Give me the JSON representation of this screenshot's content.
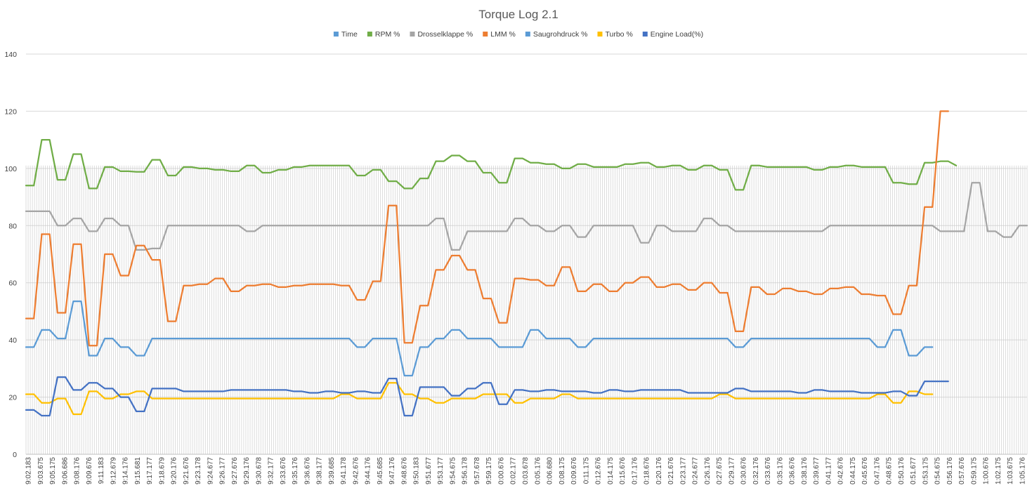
{
  "chart_data": {
    "type": "line",
    "title": "Torque Log 2.1",
    "xlabel": "",
    "ylabel": "",
    "ylim": [
      0,
      140
    ],
    "yticks": [
      0,
      20,
      40,
      60,
      80,
      100,
      120,
      140
    ],
    "grid": true,
    "legend_position": "top",
    "x_tick_labels": [
      "9:02.183",
      "9:03.675",
      "9:05.175",
      "9:06.686",
      "9:08.176",
      "9:09.676",
      "9:11.183",
      "9:12.679",
      "9:14.176",
      "9:15.681",
      "9:17.177",
      "9:18.679",
      "9:20.176",
      "9:21.676",
      "9:23.178",
      "9:24.677",
      "9:26.177",
      "9:27.676",
      "9:29.176",
      "9:30.678",
      "9:32.177",
      "9:33.676",
      "9:35.176",
      "9:36.676",
      "9:38.177",
      "9:39.685",
      "9:41.178",
      "9:42.676",
      "9:44.176",
      "9:45.685",
      "9:47.176",
      "9:48.676",
      "9:50.183",
      "9:51.677",
      "9:53.177",
      "9:54.675",
      "9:56.178",
      "9:57.678",
      "9:59.175",
      "0:00.676",
      "0:02.177",
      "0:03.678",
      "0:05.176",
      "0:06.680",
      "0:08.175",
      "0:09.676",
      "0:11.175",
      "0:12.676",
      "0:14.175",
      "0:15.676",
      "0:17.176",
      "0:18.676",
      "0:20.176",
      "0:21.676",
      "0:23.177",
      "0:24.677",
      "0:26.176",
      "0:27.675",
      "0:29.177",
      "0:30.676",
      "0:32.176",
      "0:33.676",
      "0:35.176",
      "0:36.676",
      "0:38.176",
      "0:39.677",
      "0:41.177",
      "0:42.676",
      "0:44.175",
      "0:45.676",
      "0:47.176",
      "0:48.675",
      "0:50.176",
      "0:51.677",
      "0:53.175",
      "0:54.675",
      "0:56.176",
      "0:57.676",
      "0:59.175",
      "1:00.676",
      "1:02.175",
      "1:03.675",
      "1:05.176"
    ],
    "series": [
      {
        "name": "Time",
        "color": "#5b9bd5",
        "values": [],
        "style": "dense-vertical-lines"
      },
      {
        "name": "RPM %",
        "color": "#70ad47",
        "values": [
          94,
          94,
          110,
          110,
          96,
          96,
          105,
          105,
          93,
          93,
          100.5,
          100.5,
          99,
          99,
          98.8,
          98.8,
          103,
          103,
          97.5,
          97.5,
          100.5,
          100.5,
          100,
          100,
          99.5,
          99.5,
          99,
          99,
          101,
          101,
          98.5,
          98.5,
          99.5,
          99.5,
          100.5,
          100.5,
          101,
          101,
          101,
          101,
          101,
          101,
          97.5,
          97.5,
          99.5,
          99.5,
          95.5,
          95.5,
          93,
          93,
          96.5,
          96.5,
          102.5,
          102.5,
          104.5,
          104.5,
          102.5,
          102.5,
          98.5,
          98.5,
          95,
          95,
          103.5,
          103.5,
          102,
          102,
          101.5,
          101.5,
          100,
          100,
          101.5,
          101.5,
          100.5,
          100.5,
          100.5,
          100.5,
          101.5,
          101.5,
          102,
          102,
          100.5,
          100.5,
          101,
          101,
          99.5,
          99.5,
          101,
          101,
          99.5,
          99.5,
          92.5,
          92.5,
          101,
          101,
          100.5,
          100.5,
          100.5,
          100.5,
          100.5,
          100.5,
          99.5,
          99.5,
          100.5,
          100.5,
          101,
          101,
          100.5,
          100.5,
          100.5,
          100.5,
          95,
          95,
          94.5,
          94.5,
          102,
          102,
          102.5,
          102.5,
          101
        ]
      },
      {
        "name": "Drosselklappe %",
        "color": "#a5a5a5",
        "values": [
          85,
          85,
          85,
          85,
          80,
          80,
          82.5,
          82.5,
          78,
          78,
          82.5,
          82.5,
          80,
          80,
          71.5,
          71.5,
          72,
          72,
          80,
          80,
          80,
          80,
          80,
          80,
          80,
          80,
          80,
          80,
          78,
          78,
          80,
          80,
          80,
          80,
          80,
          80,
          80,
          80,
          80,
          80,
          80,
          80,
          80,
          80,
          80,
          80,
          80,
          80,
          80,
          80,
          80,
          80,
          82.5,
          82.5,
          71.5,
          71.5,
          78,
          78,
          78,
          78,
          78,
          78,
          82.5,
          82.5,
          80,
          80,
          78,
          78,
          80,
          80,
          76,
          76,
          80,
          80,
          80,
          80,
          80,
          80,
          74,
          74,
          80,
          80,
          78,
          78,
          78,
          78,
          82.5,
          82.5,
          80,
          80,
          78,
          78,
          78,
          78,
          78,
          78,
          78,
          78,
          78,
          78,
          78,
          78,
          80,
          80,
          80,
          80,
          80,
          80,
          80,
          80,
          80,
          80,
          80,
          80,
          80,
          80,
          78,
          78,
          78,
          78,
          95,
          95,
          78,
          78,
          76,
          76,
          80,
          80
        ]
      },
      {
        "name": "LMM %",
        "color": "#ed7d31",
        "values": [
          47.5,
          47.5,
          77,
          77,
          49.5,
          49.5,
          73.5,
          73.5,
          38,
          38,
          70,
          70,
          62.5,
          62.5,
          73,
          73,
          68,
          68,
          46.5,
          46.5,
          59,
          59,
          59.5,
          59.5,
          61.5,
          61.5,
          57,
          57,
          59,
          59,
          59.5,
          59.5,
          58.5,
          58.5,
          59,
          59,
          59.5,
          59.5,
          59.5,
          59.5,
          59,
          59,
          54,
          54,
          60.5,
          60.5,
          87,
          87,
          39,
          39,
          52,
          52,
          64.5,
          64.5,
          69.5,
          69.5,
          64.5,
          64.5,
          54.5,
          54.5,
          46,
          46,
          61.5,
          61.5,
          61,
          61,
          59,
          59,
          65.5,
          65.5,
          57,
          57,
          59.5,
          59.5,
          57,
          57,
          60,
          60,
          62,
          62,
          58.5,
          58.5,
          59.5,
          59.5,
          57.5,
          57.5,
          60,
          60,
          56.5,
          56.5,
          43,
          43,
          58.5,
          58.5,
          56,
          56,
          58,
          58,
          57,
          57,
          56,
          56,
          58,
          58,
          58.5,
          58.5,
          56,
          56,
          55.5,
          55.5,
          49,
          49,
          59,
          59,
          86.5,
          86.5,
          120,
          120
        ]
      },
      {
        "name": "Saugrohdruck %",
        "color": "#5b9bd5",
        "values": [
          37.5,
          37.5,
          43.5,
          43.5,
          40.5,
          40.5,
          53.5,
          53.5,
          34.5,
          34.5,
          40.5,
          40.5,
          37.5,
          37.5,
          34.5,
          34.5,
          40.5,
          40.5,
          40.5,
          40.5,
          40.5,
          40.5,
          40.5,
          40.5,
          40.5,
          40.5,
          40.5,
          40.5,
          40.5,
          40.5,
          40.5,
          40.5,
          40.5,
          40.5,
          40.5,
          40.5,
          40.5,
          40.5,
          40.5,
          40.5,
          40.5,
          40.5,
          37.5,
          37.5,
          40.5,
          40.5,
          40.5,
          40.5,
          27.5,
          27.5,
          37.5,
          37.5,
          40.5,
          40.5,
          43.5,
          43.5,
          40.5,
          40.5,
          40.5,
          40.5,
          37.5,
          37.5,
          37.5,
          37.5,
          43.5,
          43.5,
          40.5,
          40.5,
          40.5,
          40.5,
          37.5,
          37.5,
          40.5,
          40.5,
          40.5,
          40.5,
          40.5,
          40.5,
          40.5,
          40.5,
          40.5,
          40.5,
          40.5,
          40.5,
          40.5,
          40.5,
          40.5,
          40.5,
          40.5,
          40.5,
          37.5,
          37.5,
          40.5,
          40.5,
          40.5,
          40.5,
          40.5,
          40.5,
          40.5,
          40.5,
          40.5,
          40.5,
          40.5,
          40.5,
          40.5,
          40.5,
          40.5,
          40.5,
          37.5,
          37.5,
          43.5,
          43.5,
          34.5,
          34.5,
          37.5,
          37.5
        ]
      },
      {
        "name": "Turbo %",
        "color": "#ffc000",
        "values": [
          21,
          21,
          18,
          18,
          19.5,
          19.5,
          14,
          14,
          22,
          22,
          19.5,
          19.5,
          21,
          21,
          22,
          22,
          19.5,
          19.5,
          19.5,
          19.5,
          19.5,
          19.5,
          19.5,
          19.5,
          19.5,
          19.5,
          19.5,
          19.5,
          19.5,
          19.5,
          19.5,
          19.5,
          19.5,
          19.5,
          19.5,
          19.5,
          19.5,
          19.5,
          19.5,
          19.5,
          21,
          21,
          19.5,
          19.5,
          19.5,
          19.5,
          25,
          25,
          21,
          21,
          19.5,
          19.5,
          18,
          18,
          19.5,
          19.5,
          19.5,
          19.5,
          21,
          21,
          21,
          21,
          18,
          18,
          19.5,
          19.5,
          19.5,
          19.5,
          21,
          21,
          19.5,
          19.5,
          19.5,
          19.5,
          19.5,
          19.5,
          19.5,
          19.5,
          19.5,
          19.5,
          19.5,
          19.5,
          19.5,
          19.5,
          19.5,
          19.5,
          19.5,
          19.5,
          21,
          21,
          19.5,
          19.5,
          19.5,
          19.5,
          19.5,
          19.5,
          19.5,
          19.5,
          19.5,
          19.5,
          19.5,
          19.5,
          19.5,
          19.5,
          19.5,
          19.5,
          19.5,
          19.5,
          21,
          21,
          18,
          18,
          22,
          22,
          21,
          21
        ]
      },
      {
        "name": "Engine Load(%)",
        "color": "#4472c4",
        "values": [
          15.5,
          15.5,
          13.5,
          13.5,
          27,
          27,
          22.5,
          22.5,
          25,
          25,
          23,
          23,
          20,
          20,
          15,
          15,
          23,
          23,
          23,
          23,
          22,
          22,
          22,
          22,
          22,
          22,
          22.5,
          22.5,
          22.5,
          22.5,
          22.5,
          22.5,
          22.5,
          22.5,
          22,
          22,
          21.5,
          21.5,
          22,
          22,
          21.5,
          21.5,
          22,
          22,
          21.5,
          21.5,
          26.5,
          26.5,
          13.5,
          13.5,
          23.5,
          23.5,
          23.5,
          23.5,
          20.5,
          20.5,
          23,
          23,
          25,
          25,
          17.5,
          17.5,
          22.5,
          22.5,
          22,
          22,
          22.5,
          22.5,
          22,
          22,
          22,
          22,
          21.5,
          21.5,
          22.5,
          22.5,
          22,
          22,
          22.5,
          22.5,
          22.5,
          22.5,
          22.5,
          22.5,
          21.5,
          21.5,
          21.5,
          21.5,
          21.5,
          21.5,
          23,
          23,
          22,
          22,
          22,
          22,
          22,
          22,
          21.5,
          21.5,
          22.5,
          22.5,
          22,
          22,
          22,
          22,
          21.5,
          21.5,
          21.5,
          21.5,
          22,
          22,
          20.5,
          20.5,
          25.5,
          25.5,
          25.5,
          25.5
        ]
      }
    ]
  }
}
